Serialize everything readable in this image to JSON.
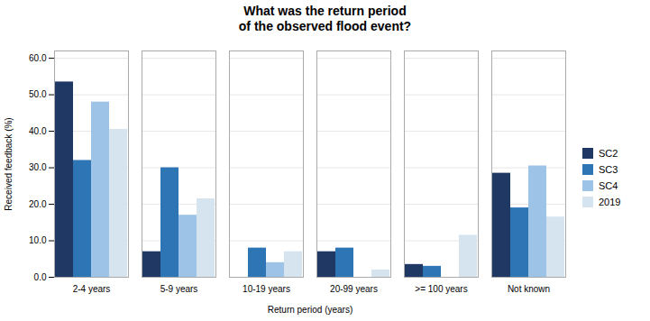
{
  "chart_data": {
    "type": "bar",
    "title": "What was the return period\nof the observed flood event?",
    "xlabel": "Return period (years)",
    "ylabel": "Received feedback (%)",
    "categories": [
      "2-4 years",
      "5-9 years",
      "10-19 years",
      "20-99 years",
      ">= 100 years",
      "Not known"
    ],
    "series": [
      {
        "name": "SC2",
        "color": "#1F3864",
        "values": [
          53.5,
          7.0,
          0.0,
          7.0,
          3.5,
          28.5
        ]
      },
      {
        "name": "SC3",
        "color": "#2E75B6",
        "values": [
          32.0,
          30.0,
          8.0,
          8.0,
          3.0,
          19.0
        ]
      },
      {
        "name": "SC4",
        "color": "#9DC3E6",
        "values": [
          48.0,
          17.0,
          4.0,
          0.0,
          0.0,
          30.5
        ]
      },
      {
        "name": "2019",
        "color": "#D6E4F0",
        "values": [
          40.5,
          21.5,
          7.0,
          2.0,
          11.5,
          16.5
        ]
      }
    ],
    "ylim": [
      0,
      62
    ],
    "yticks": [
      {
        "value": 0,
        "label": "0.0"
      },
      {
        "value": 10,
        "label": "10.0"
      },
      {
        "value": 20,
        "label": "20.0"
      },
      {
        "value": 30,
        "label": "30.0"
      },
      {
        "value": 40,
        "label": "40.0"
      },
      {
        "value": 50,
        "label": "50.0"
      },
      {
        "value": 60,
        "label": "60.0"
      }
    ],
    "grid": true,
    "legend": "right"
  }
}
